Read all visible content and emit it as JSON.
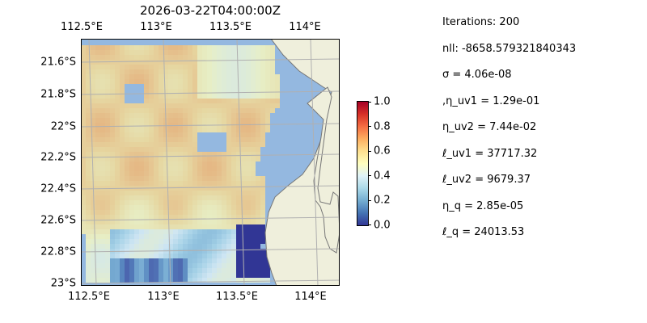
{
  "map": {
    "title": "2026-03-22T04:00:00Z",
    "lon_ticks": [
      "112.5°E",
      "113°E",
      "113.5°E",
      "114°E"
    ],
    "lat_ticks": [
      "21.6°S",
      "21.8°S",
      "22°S",
      "22.2°S",
      "22.4°S",
      "22.6°S",
      "22.8°S",
      "23°S"
    ],
    "colors": {
      "ocean": "#94b8e0",
      "land": "#efefdc",
      "coast": "#777777",
      "grid": "#b0b0b0"
    }
  },
  "colorbar": {
    "ticks": [
      "0.0",
      "0.2",
      "0.4",
      "0.6",
      "0.8",
      "1.0"
    ],
    "colormap": "RdYlBu_r"
  },
  "params": [
    "Iterations: 200",
    "nll: -8658.579321840343",
    "σ = 4.06e-08",
    ",η_uv1 = 1.29e-01",
    "η_uv2 = 7.44e-02",
    "ℓ_uv1 = 37717.32",
    "ℓ_uv2 = 9679.37",
    "η_q = 2.85e-05",
    "ℓ_q = 24013.53"
  ]
}
